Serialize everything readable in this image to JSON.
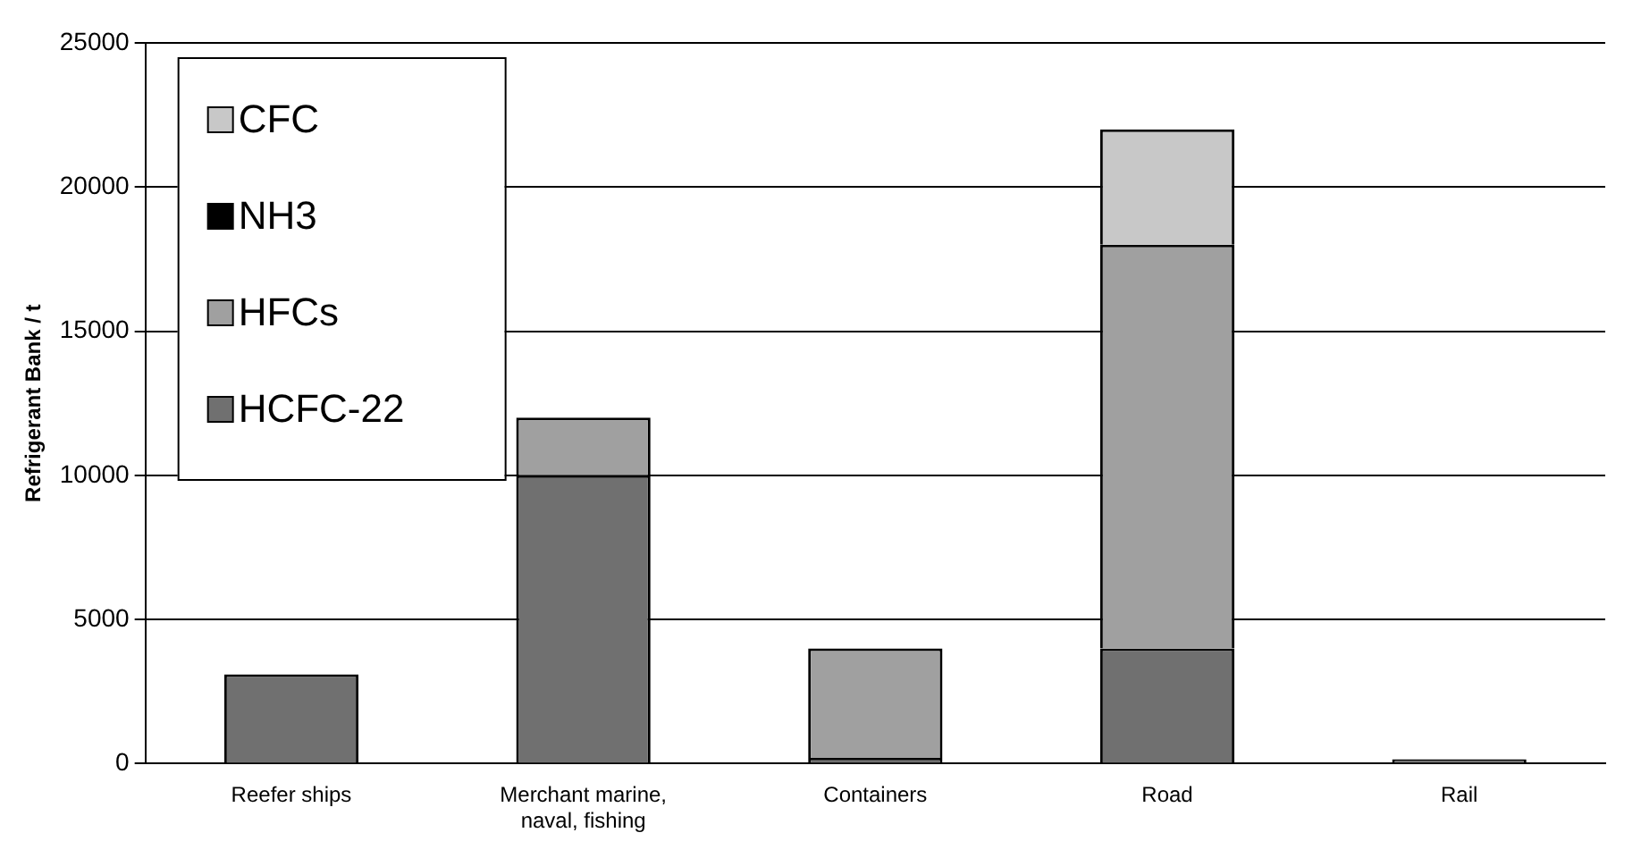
{
  "chart_data": {
    "type": "bar",
    "stacked": true,
    "ylabel": "Refrigerant Bank / t",
    "categories": [
      "Reefer ships",
      "Merchant marine, naval, fishing",
      "Containers",
      "Road",
      "Rail"
    ],
    "series": [
      {
        "name": "HCFC-22",
        "color": "#707070",
        "values": [
          3100,
          10000,
          200,
          4000,
          150
        ]
      },
      {
        "name": "HFCs",
        "color": "#a0a0a0",
        "values": [
          0,
          2000,
          3800,
          14000,
          0
        ]
      },
      {
        "name": "NH3",
        "color": "#000000",
        "values": [
          null,
          0,
          0,
          0,
          0
        ]
      },
      {
        "name": "CFC",
        "color": "#c8c8c8",
        "values": [
          0,
          0,
          0,
          4000,
          0
        ]
      }
    ],
    "ylim": [
      0,
      25000
    ],
    "yticks": [
      0,
      5000,
      10000,
      15000,
      20000,
      25000
    ],
    "grid": "y",
    "legend": "top left"
  }
}
